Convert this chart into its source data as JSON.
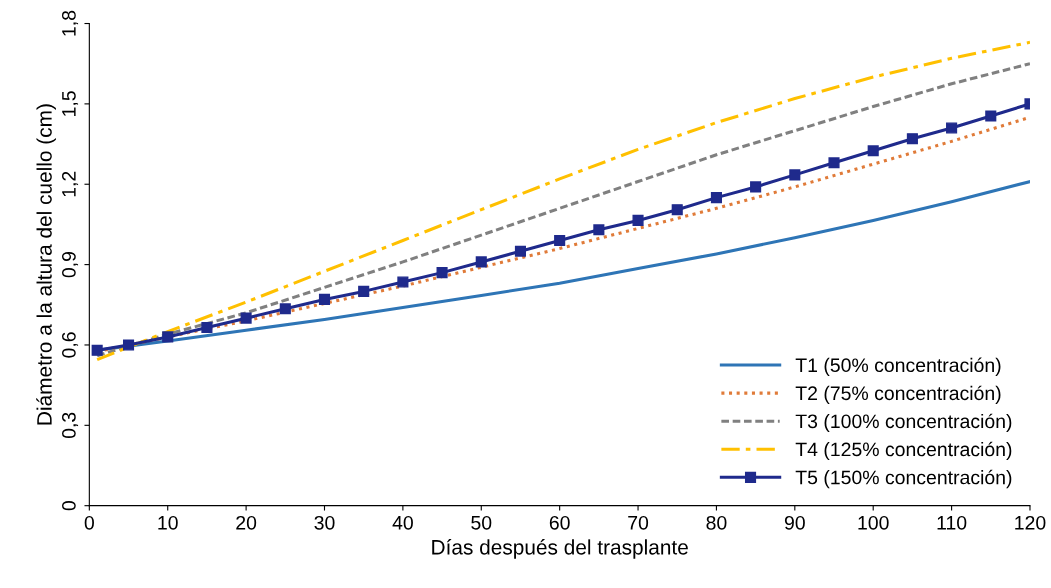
{
  "chart_data": {
    "type": "line",
    "xlabel": "Días después del trasplante",
    "ylabel": "Diámetro a la altura del cuello (cm)",
    "xlim": [
      0,
      120
    ],
    "xticks": [
      0,
      10,
      20,
      30,
      40,
      50,
      60,
      70,
      80,
      90,
      100,
      110,
      120
    ],
    "ylim": [
      0,
      1.8
    ],
    "yticks": [
      {
        "value": 0,
        "label": "0"
      },
      {
        "value": 0.3,
        "label": "0,3"
      },
      {
        "value": 0.6,
        "label": "0,6"
      },
      {
        "value": 0.9,
        "label": "0,9"
      },
      {
        "value": 1.2,
        "label": "1,2"
      },
      {
        "value": 1.5,
        "label": "1,5"
      },
      {
        "value": 1.8,
        "label": "1,8"
      }
    ],
    "grid": false,
    "legend": "bottom right",
    "series": [
      {
        "name": "T1 (50% concentración)",
        "color": "#2e75b6",
        "line_style": "solid",
        "marker": "none",
        "x": [
          1,
          10,
          20,
          30,
          40,
          50,
          60,
          70,
          80,
          90,
          100,
          110,
          120
        ],
        "values": [
          0.58,
          0.615,
          0.655,
          0.695,
          0.74,
          0.785,
          0.83,
          0.885,
          0.94,
          1.0,
          1.065,
          1.135,
          1.21
        ]
      },
      {
        "name": "T2 (75% concentración)",
        "color": "#e07b39",
        "line_style": "dotted",
        "marker": "none",
        "x": [
          1,
          10,
          20,
          30,
          40,
          50,
          60,
          70,
          80,
          90,
          100,
          110,
          120
        ],
        "values": [
          0.575,
          0.63,
          0.69,
          0.755,
          0.82,
          0.89,
          0.96,
          1.035,
          1.11,
          1.19,
          1.275,
          1.36,
          1.45
        ]
      },
      {
        "name": "T3 (100% concentración)",
        "color": "#808080",
        "line_style": "dashed",
        "marker": "none",
        "x": [
          1,
          10,
          20,
          30,
          40,
          50,
          60,
          70,
          80,
          90,
          100,
          110,
          120
        ],
        "values": [
          0.56,
          0.64,
          0.72,
          0.815,
          0.91,
          1.01,
          1.11,
          1.21,
          1.31,
          1.4,
          1.49,
          1.575,
          1.65
        ]
      },
      {
        "name": "T4 (125% concentración)",
        "color": "#ffc000",
        "line_style": "dashdot",
        "marker": "none",
        "x": [
          1,
          10,
          20,
          30,
          40,
          50,
          60,
          70,
          80,
          90,
          100,
          110,
          120
        ],
        "values": [
          0.545,
          0.65,
          0.76,
          0.875,
          0.99,
          1.105,
          1.22,
          1.33,
          1.43,
          1.52,
          1.6,
          1.67,
          1.73
        ]
      },
      {
        "name": "T5 (150% concentración)",
        "color": "#1f2a8c",
        "line_style": "solid",
        "marker": "square",
        "x": [
          1,
          5,
          10,
          15,
          20,
          25,
          30,
          35,
          40,
          45,
          50,
          55,
          60,
          65,
          70,
          75,
          80,
          85,
          90,
          95,
          100,
          105,
          110,
          115,
          120
        ],
        "values": [
          0.58,
          0.6,
          0.63,
          0.665,
          0.7,
          0.735,
          0.77,
          0.8,
          0.835,
          0.87,
          0.91,
          0.95,
          0.99,
          1.03,
          1.065,
          1.105,
          1.15,
          1.19,
          1.235,
          1.28,
          1.325,
          1.37,
          1.41,
          1.455,
          1.5
        ]
      }
    ]
  }
}
